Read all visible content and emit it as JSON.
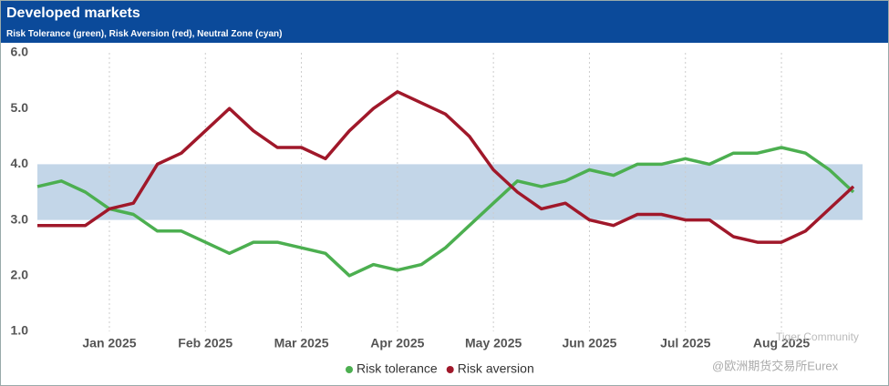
{
  "chart_data": {
    "type": "line",
    "title": "Developed markets",
    "subtitle": "Risk Tolerance (green), Risk Aversion (red), Neutral Zone (cyan)",
    "categories": [
      null,
      null,
      null,
      "Jan 2025",
      null,
      null,
      null,
      "Feb 2025",
      null,
      null,
      null,
      "Mar 2025",
      null,
      null,
      null,
      "Apr 2025",
      null,
      null,
      null,
      "May 2025",
      null,
      null,
      null,
      "Jun 2025",
      null,
      null,
      null,
      "Jul 2025",
      null,
      null,
      null,
      "Aug 2025",
      null,
      null,
      null
    ],
    "series": [
      {
        "name": "Risk tolerance",
        "color": "#4caf50",
        "values": [
          3.6,
          3.7,
          3.5,
          3.2,
          3.1,
          2.8,
          2.8,
          2.6,
          2.4,
          2.6,
          2.6,
          2.5,
          2.4,
          2.0,
          2.2,
          2.1,
          2.2,
          2.5,
          2.9,
          3.3,
          3.7,
          3.6,
          3.7,
          3.9,
          3.8,
          4.0,
          4.0,
          4.1,
          4.0,
          4.2,
          4.2,
          4.3,
          4.2,
          3.9,
          3.5
        ]
      },
      {
        "name": "Risk aversion",
        "color": "#a0182a",
        "values": [
          2.9,
          2.9,
          2.9,
          3.2,
          3.3,
          4.0,
          4.2,
          4.6,
          5.0,
          4.6,
          4.3,
          4.3,
          4.1,
          4.6,
          5.0,
          5.3,
          5.1,
          4.9,
          4.5,
          3.9,
          3.5,
          3.2,
          3.3,
          3.0,
          2.9,
          3.1,
          3.1,
          3.0,
          3.0,
          2.7,
          2.6,
          2.6,
          2.8,
          3.2,
          3.6
        ]
      }
    ],
    "band": {
      "from": 3,
      "to": 4,
      "color": "#c3d6e8"
    },
    "ylim": [
      1,
      6
    ],
    "yticks": [
      {
        "value": 1,
        "label": "1.0"
      },
      {
        "value": 2,
        "label": "2.0"
      },
      {
        "value": 3,
        "label": "3.0"
      },
      {
        "value": 4,
        "label": "4.0"
      },
      {
        "value": 5,
        "label": "5.0"
      },
      {
        "value": 6,
        "label": "6.0"
      }
    ],
    "grid": true,
    "legend": "bottom",
    "watermark": [
      "Tiger Community",
      "@欧洲期货交易所Eurex"
    ]
  }
}
